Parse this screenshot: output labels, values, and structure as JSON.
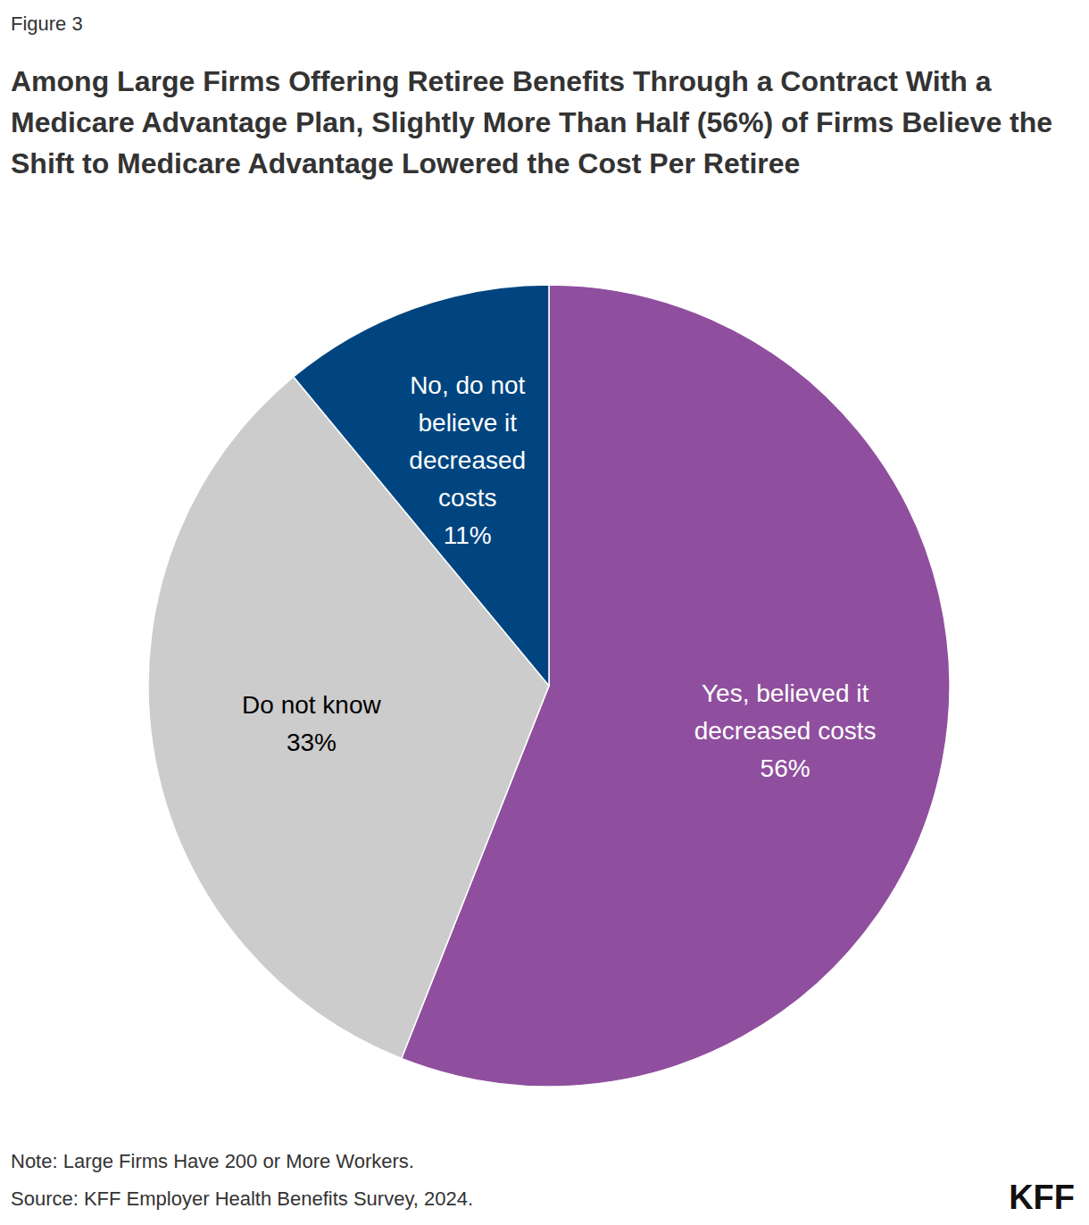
{
  "chart_data": {
    "type": "pie",
    "figure_label": "Figure 3",
    "title": "Among Large Firms Offering Retiree Benefits Through a Contract With a Medicare Advantage Plan, Slightly More Than Half (56%) of Firms Believe the Shift to Medicare Advantage Lowered the Cost Per Retiree",
    "categories": [
      "Yes, believed it decreased costs",
      "Do not know",
      "No, do not believe it decreased costs"
    ],
    "values": [
      56,
      33,
      11
    ],
    "value_labels": [
      "56%",
      "33%",
      "11%"
    ],
    "colors": [
      "#8f4f9e",
      "#cccccc",
      "#00457f"
    ],
    "data_labels": true,
    "legend": false,
    "note": "Note: Large Firms Have 200 or More Workers.",
    "source": "Source: KFF Employer Health Benefits Survey, 2024.",
    "logo": "KFF"
  }
}
